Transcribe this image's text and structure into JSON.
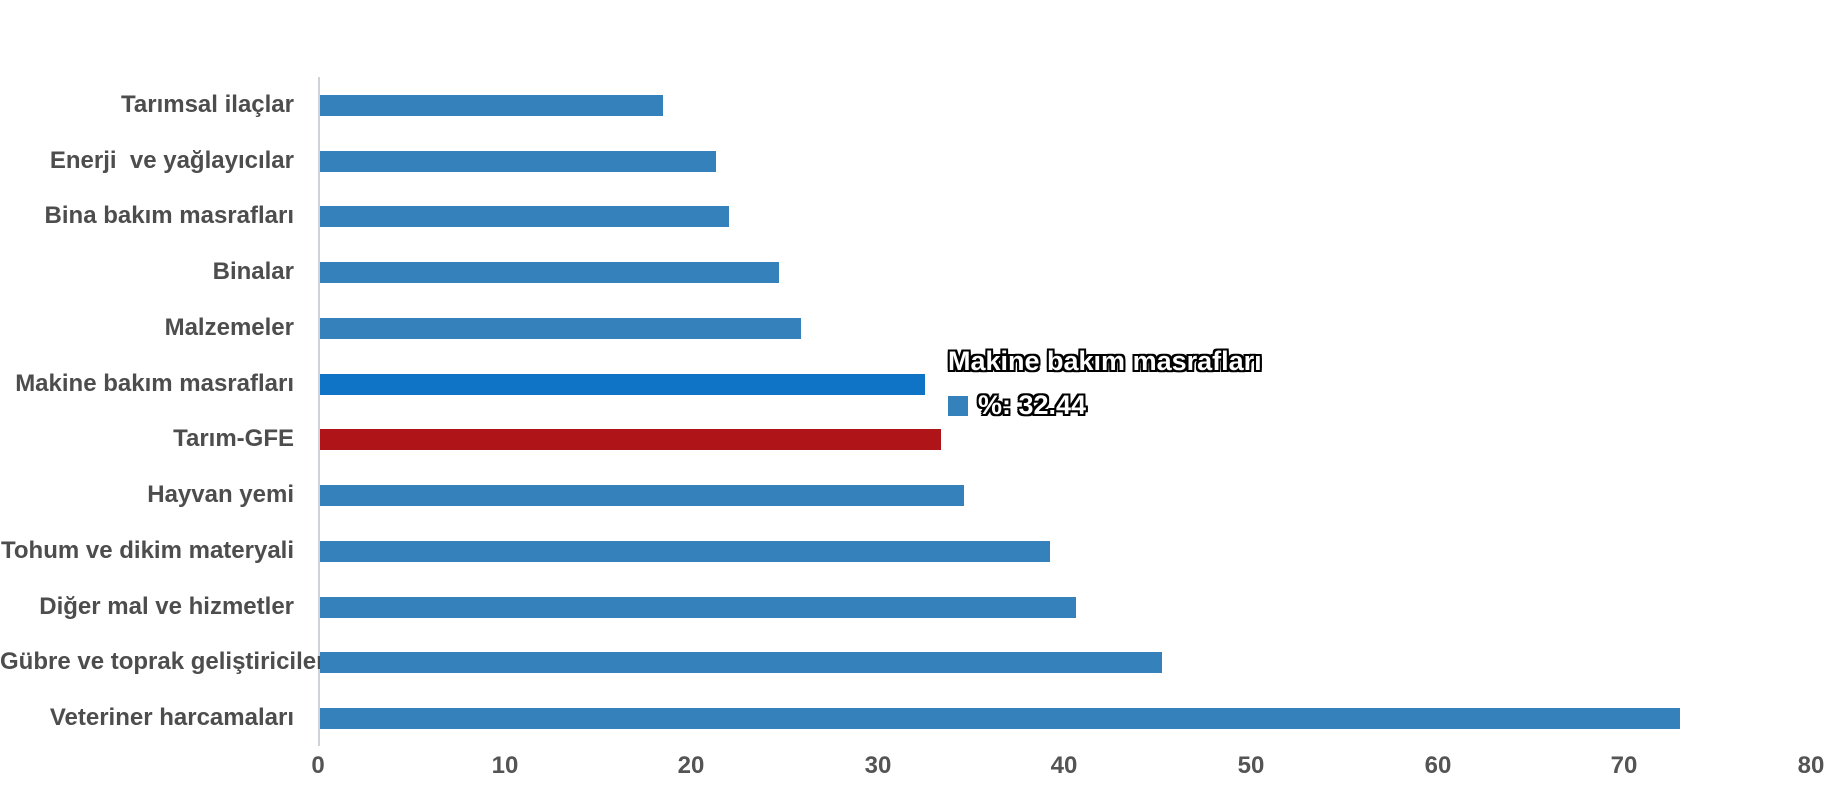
{
  "chart_data": {
    "type": "bar",
    "orientation": "horizontal",
    "title": "",
    "series_name": "%",
    "categories": [
      "Tarımsal ilaçlar",
      "Enerji  ve yağlayıcılar",
      "Bina bakım masrafları",
      "Binalar",
      "Malzemeler",
      "Makine bakım masrafları",
      "Tarım-GFE",
      "Hayvan yemi",
      "Tohum ve dikim materyali",
      "Diğer mal ve hizmetler",
      "Gübre ve toprak geliştiriciler",
      "Veteriner harcamaları"
    ],
    "values": [
      18.4,
      21.2,
      21.9,
      24.6,
      25.8,
      32.44,
      33.3,
      34.5,
      39.1,
      40.5,
      45.1,
      72.9
    ],
    "bar_colors": [
      "#3581bc",
      "#3581bc",
      "#3581bc",
      "#3581bc",
      "#3581bc",
      "#0f74c5",
      "#ae1418",
      "#3581bc",
      "#3581bc",
      "#3581bc",
      "#3581bc",
      "#3581bc"
    ],
    "highlighted_category": "Makine bakım masrafları",
    "special_category": "Tarım-GFE",
    "xlabel": "",
    "ylabel": "",
    "xlim": [
      0,
      80
    ],
    "x_ticks": [
      0,
      10,
      20,
      30,
      40,
      50,
      60,
      70,
      80
    ],
    "grid": false,
    "legend": "none"
  },
  "tooltip": {
    "title": "Makine bakım masrafları",
    "value_label": "%: 32.44",
    "swatch_color": "#3581bc"
  },
  "colors": {
    "bar_blue": "#3581bc",
    "bar_blue_highlight": "#0f74c5",
    "bar_red": "#ae1418",
    "axis_line": "#cfd2d6",
    "category_label": "#4d4d4d",
    "tick_label": "#545454",
    "background": "#ffffff"
  }
}
